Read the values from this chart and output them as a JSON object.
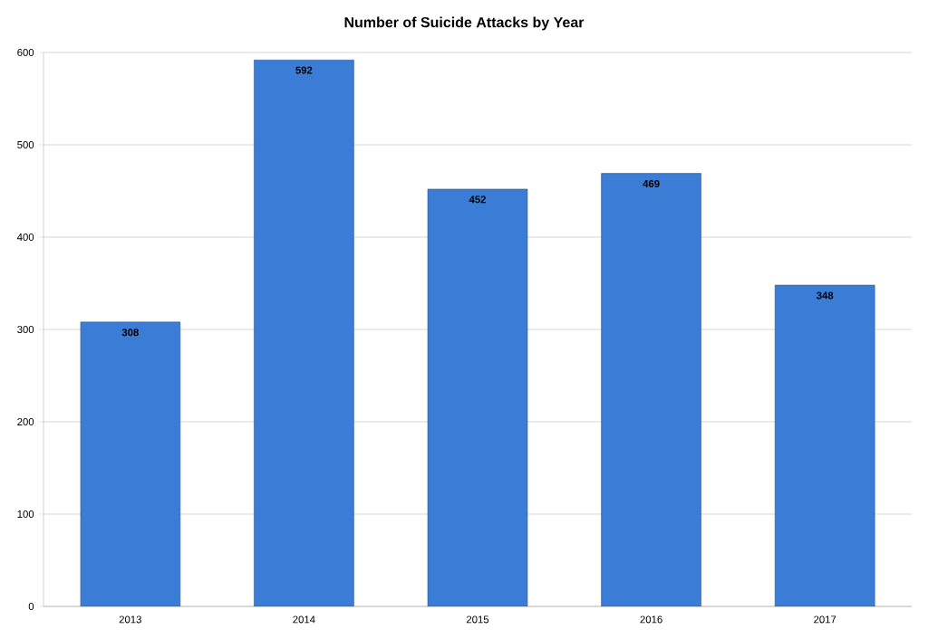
{
  "chart_data": {
    "type": "bar",
    "title": "Number of Suicide Attacks by Year",
    "categories": [
      "2013",
      "2014",
      "2015",
      "2016",
      "2017"
    ],
    "values": [
      308,
      592,
      452,
      469,
      348
    ],
    "color": "#3b7dd6",
    "ylim": [
      0,
      600
    ],
    "yticks": [
      0,
      100,
      200,
      300,
      400,
      500,
      600
    ],
    "grid": "y",
    "data_labels": true
  }
}
